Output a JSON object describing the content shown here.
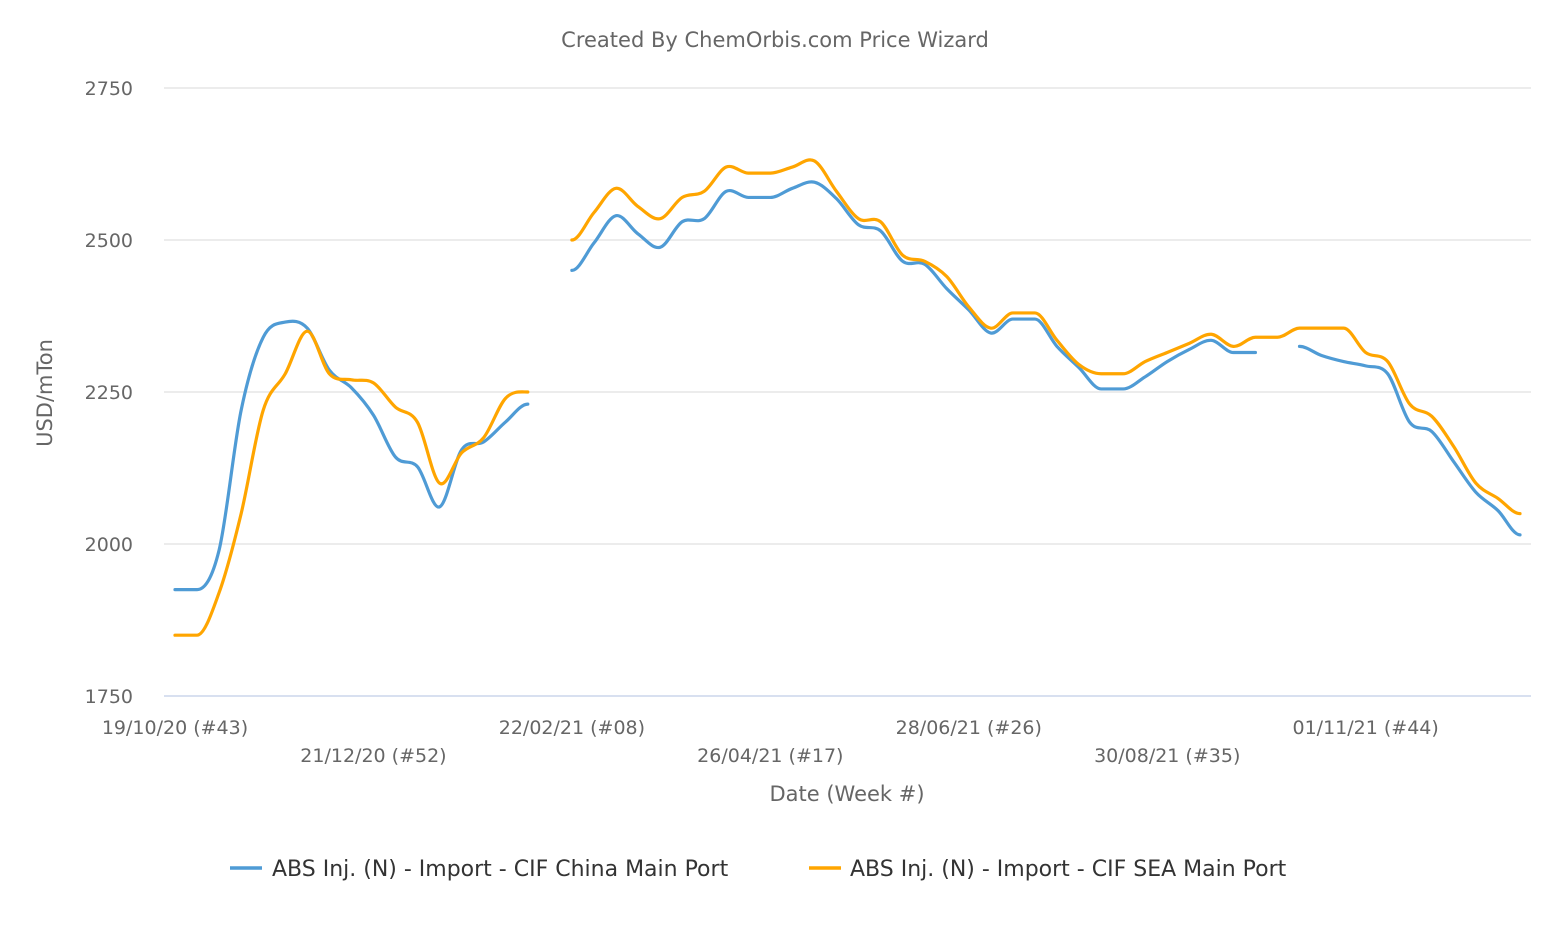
{
  "chart_data": {
    "type": "line",
    "title": "Created By ChemOrbis.com Price Wizard",
    "xlabel": "Date (Week #)",
    "ylabel": "USD/mTon",
    "ylim": [
      1750,
      2750
    ],
    "yticks": [
      "1750",
      "2000",
      "2250",
      "2500",
      "2750"
    ],
    "grid": true,
    "legend_position": "bottom",
    "x": [
      "19/10/20",
      "26/10/20",
      "02/11/20",
      "09/11/20",
      "16/11/20",
      "23/11/20",
      "30/11/20",
      "07/12/20",
      "14/12/20",
      "21/12/20",
      "28/12/20",
      "04/01/21",
      "11/01/21",
      "18/01/21",
      "25/01/21",
      "01/02/21",
      "08/02/21",
      "15/02/21",
      "22/02/21",
      "01/03/21",
      "08/03/21",
      "15/03/21",
      "22/03/21",
      "29/03/21",
      "05/04/21",
      "12/04/21",
      "19/04/21",
      "26/04/21",
      "03/05/21",
      "10/05/21",
      "17/05/21",
      "24/05/21",
      "31/05/21",
      "07/06/21",
      "14/06/21",
      "21/06/21",
      "28/06/21",
      "05/07/21",
      "12/07/21",
      "19/07/21",
      "26/07/21",
      "02/08/21",
      "09/08/21",
      "16/08/21",
      "23/08/21",
      "30/08/21",
      "06/09/21",
      "13/09/21",
      "20/09/21",
      "27/09/21",
      "04/10/21",
      "11/10/21",
      "18/10/21",
      "25/10/21",
      "01/11/21",
      "08/11/21",
      "15/11/21",
      "22/11/21",
      "29/11/21",
      "06/12/21",
      "13/12/21",
      "20/12/21"
    ],
    "xticks": [
      {
        "index": 0,
        "label": "19/10/20 (#43)",
        "row": 1
      },
      {
        "index": 9,
        "label": "21/12/20 (#52)",
        "row": 2
      },
      {
        "index": 18,
        "label": "22/02/21 (#08)",
        "row": 1
      },
      {
        "index": 27,
        "label": "26/04/21 (#17)",
        "row": 2
      },
      {
        "index": 36,
        "label": "28/06/21 (#26)",
        "row": 1
      },
      {
        "index": 45,
        "label": "30/08/21 (#35)",
        "row": 2
      },
      {
        "index": 54,
        "label": "01/11/21 (#44)",
        "row": 1
      }
    ],
    "series": [
      {
        "name": "ABS Inj. (N) - Import - CIF China Main Port",
        "color": "#4f9bd5",
        "values": [
          1925,
          1925,
          1990,
          2220,
          2340,
          2365,
          2355,
          2286,
          2257,
          2212,
          2143,
          2127,
          2061,
          2155,
          2168,
          2201,
          2230,
          null,
          2450,
          2495,
          2540,
          2510,
          2488,
          2530,
          2535,
          2580,
          2570,
          2570,
          2585,
          2595,
          2568,
          2525,
          2515,
          2465,
          2460,
          2420,
          2385,
          2347,
          2370,
          2370,
          2325,
          2290,
          2255,
          2255,
          2275,
          2300,
          2320,
          2335,
          2315,
          2315,
          null,
          2325,
          2310,
          2300,
          2293,
          2280,
          2200,
          2185,
          2135,
          2085,
          2055,
          2015
        ]
      },
      {
        "name": "ABS Inj. (N) - Import - CIF SEA Main Port",
        "color": "#ffa500",
        "values": [
          1850,
          1850,
          1920,
          2050,
          2220,
          2280,
          2350,
          2280,
          2270,
          2265,
          2225,
          2200,
          2100,
          2150,
          2175,
          2240,
          2250,
          null,
          2500,
          2545,
          2585,
          2555,
          2535,
          2570,
          2580,
          2620,
          2610,
          2610,
          2620,
          2630,
          2580,
          2535,
          2530,
          2475,
          2465,
          2440,
          2390,
          2355,
          2380,
          2380,
          2335,
          2295,
          2280,
          2280,
          2300,
          2315,
          2330,
          2345,
          2325,
          2340,
          2340,
          2355,
          2355,
          2355,
          2315,
          2300,
          2230,
          2210,
          2160,
          2100,
          2075,
          2050
        ]
      }
    ]
  }
}
